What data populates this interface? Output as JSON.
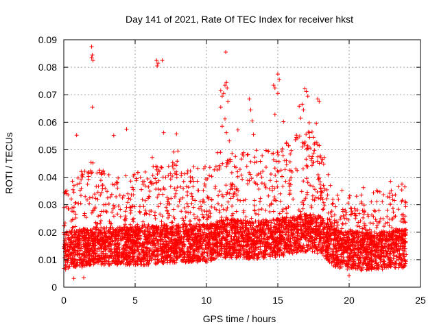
{
  "chart_data": {
    "type": "scatter",
    "title": "Day 141 of 2021, Rate Of TEC Index for receiver hkst",
    "xlabel": "GPS time / hours",
    "ylabel": "ROTI / TECUs",
    "xlim": [
      0,
      25
    ],
    "ylim": [
      0,
      0.09
    ],
    "xticks": [
      0,
      5,
      10,
      15,
      20,
      25
    ],
    "yticks": [
      0,
      0.01,
      0.02,
      0.03,
      0.04,
      0.05,
      0.06,
      0.07,
      0.08,
      0.09
    ],
    "xtick_labels": [
      "0",
      "5",
      "10",
      "15",
      "20",
      "25"
    ],
    "ytick_labels": [
      "0",
      "0.01",
      "0.02",
      "0.03",
      "0.04",
      "0.05",
      "0.06",
      "0.07",
      "0.08",
      "0.09"
    ],
    "grid": true,
    "marker": "+",
    "color": "#ff0000",
    "x_data_range": [
      0,
      24
    ],
    "series": [
      {
        "name": "ROTI",
        "envelope": [
          {
            "x": 0,
            "base": 0.013,
            "upper": 0.03
          },
          {
            "x": 2,
            "base": 0.015,
            "upper": 0.04
          },
          {
            "x": 4,
            "base": 0.015,
            "upper": 0.034
          },
          {
            "x": 6,
            "base": 0.015,
            "upper": 0.038
          },
          {
            "x": 8,
            "base": 0.016,
            "upper": 0.04
          },
          {
            "x": 10,
            "base": 0.016,
            "upper": 0.038
          },
          {
            "x": 11.5,
            "base": 0.018,
            "upper": 0.048
          },
          {
            "x": 13,
            "base": 0.017,
            "upper": 0.042
          },
          {
            "x": 15,
            "base": 0.018,
            "upper": 0.045
          },
          {
            "x": 17,
            "base": 0.02,
            "upper": 0.052
          },
          {
            "x": 18,
            "base": 0.019,
            "upper": 0.045
          },
          {
            "x": 19,
            "base": 0.014,
            "upper": 0.03
          },
          {
            "x": 21,
            "base": 0.013,
            "upper": 0.028
          },
          {
            "x": 24,
            "base": 0.014,
            "upper": 0.032
          }
        ],
        "outliers": [
          {
            "x": 0.9,
            "y": 0.0553
          },
          {
            "x": 1.95,
            "y": 0.0875
          },
          {
            "x": 2.0,
            "y": 0.0845
          },
          {
            "x": 1.95,
            "y": 0.0835
          },
          {
            "x": 2.05,
            "y": 0.0825
          },
          {
            "x": 2.0,
            "y": 0.0655
          },
          {
            "x": 2.05,
            "y": 0.0452
          },
          {
            "x": 3.5,
            "y": 0.0552
          },
          {
            "x": 4.4,
            "y": 0.0575
          },
          {
            "x": 6.5,
            "y": 0.0825
          },
          {
            "x": 6.6,
            "y": 0.0815
          },
          {
            "x": 6.55,
            "y": 0.0805
          },
          {
            "x": 6.9,
            "y": 0.0825
          },
          {
            "x": 6.2,
            "y": 0.0472
          },
          {
            "x": 7.0,
            "y": 0.0562
          },
          {
            "x": 7.9,
            "y": 0.0558
          },
          {
            "x": 8.0,
            "y": 0.0495
          },
          {
            "x": 7.7,
            "y": 0.0492
          },
          {
            "x": 11.0,
            "y": 0.0715
          },
          {
            "x": 11.1,
            "y": 0.0695
          },
          {
            "x": 11.35,
            "y": 0.0855
          },
          {
            "x": 11.4,
            "y": 0.0745
          },
          {
            "x": 11.3,
            "y": 0.0735
          },
          {
            "x": 11.45,
            "y": 0.0725
          },
          {
            "x": 11.2,
            "y": 0.0705
          },
          {
            "x": 11.5,
            "y": 0.0675
          },
          {
            "x": 11.0,
            "y": 0.0655
          },
          {
            "x": 11.3,
            "y": 0.0612
          },
          {
            "x": 11.1,
            "y": 0.0585
          },
          {
            "x": 11.4,
            "y": 0.0562
          },
          {
            "x": 11.6,
            "y": 0.0532
          },
          {
            "x": 12.2,
            "y": 0.0572
          },
          {
            "x": 13.0,
            "y": 0.0685
          },
          {
            "x": 13.1,
            "y": 0.0645
          },
          {
            "x": 13.2,
            "y": 0.0605
          },
          {
            "x": 13.3,
            "y": 0.0555
          },
          {
            "x": 13.5,
            "y": 0.0498
          },
          {
            "x": 14.7,
            "y": 0.0735
          },
          {
            "x": 14.8,
            "y": 0.0725
          },
          {
            "x": 15.0,
            "y": 0.0775
          },
          {
            "x": 15.1,
            "y": 0.0755
          },
          {
            "x": 15.0,
            "y": 0.0705
          },
          {
            "x": 14.8,
            "y": 0.0628
          },
          {
            "x": 15.4,
            "y": 0.0602
          },
          {
            "x": 15.6,
            "y": 0.0522
          },
          {
            "x": 16.5,
            "y": 0.0658
          },
          {
            "x": 16.7,
            "y": 0.0665
          },
          {
            "x": 16.8,
            "y": 0.0645
          },
          {
            "x": 16.9,
            "y": 0.0722
          },
          {
            "x": 17.0,
            "y": 0.0712
          },
          {
            "x": 17.1,
            "y": 0.0695
          },
          {
            "x": 16.6,
            "y": 0.0615
          },
          {
            "x": 17.2,
            "y": 0.0598
          },
          {
            "x": 17.4,
            "y": 0.0565
          },
          {
            "x": 17.5,
            "y": 0.0545
          },
          {
            "x": 17.8,
            "y": 0.0685
          },
          {
            "x": 17.9,
            "y": 0.0675
          },
          {
            "x": 17.7,
            "y": 0.0595
          },
          {
            "x": 17.6,
            "y": 0.0525
          },
          {
            "x": 19.5,
            "y": 0.0352
          },
          {
            "x": 21.0,
            "y": 0.0362
          },
          {
            "x": 22.0,
            "y": 0.0348
          },
          {
            "x": 22.9,
            "y": 0.0385
          },
          {
            "x": 23.7,
            "y": 0.0375
          },
          {
            "x": 23.9,
            "y": 0.0365
          },
          {
            "x": 0.7,
            "y": 0.0032
          },
          {
            "x": 1.4,
            "y": 0.0035
          },
          {
            "x": 20.0,
            "y": 0.0042
          }
        ]
      }
    ]
  }
}
